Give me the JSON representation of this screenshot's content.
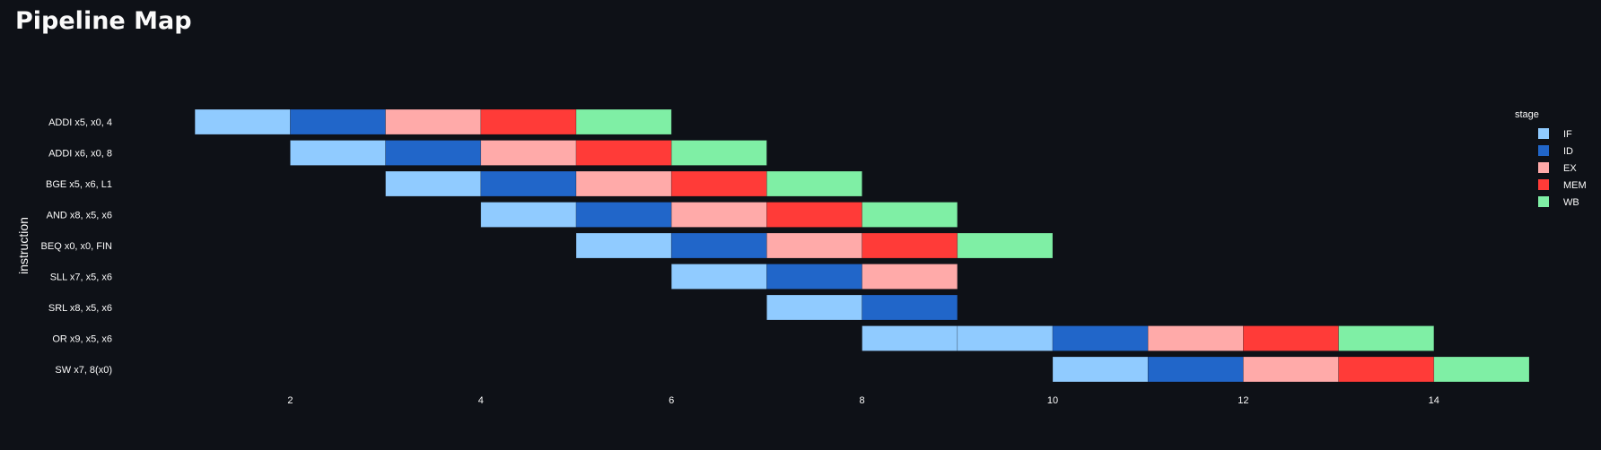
{
  "page": {
    "title": "Pipeline Map"
  },
  "chart_data": {
    "type": "bar",
    "orientation": "horizontal",
    "title": "",
    "xlabel": "",
    "ylabel": "instruction",
    "xlim": [
      0,
      15
    ],
    "xticks": [
      2,
      4,
      6,
      8,
      10,
      12,
      14
    ],
    "grid": false,
    "legend": {
      "title": "stage",
      "placement": "right"
    },
    "stages": [
      {
        "name": "IF",
        "color": "#90cbff"
      },
      {
        "name": "ID",
        "color": "#2166c9"
      },
      {
        "name": "EX",
        "color": "#ffaaa9"
      },
      {
        "name": "MEM",
        "color": "#ff3b38"
      },
      {
        "name": "WB",
        "color": "#7fefa5"
      }
    ],
    "categories": [
      "ADDI x5, x0, 4",
      "ADDI x6, x0, 8",
      "BGE x5, x6, L1",
      "AND x8, x5, x6",
      "BEQ x0, x0, FIN",
      "SLL x7, x5, x6",
      "SRL x8, x5, x6",
      "OR x9, x5, x6",
      "SW x7, 8(x0)"
    ],
    "segments": [
      {
        "instruction": "ADDI x5, x0, 4",
        "stage": "IF",
        "start": 1,
        "end": 2
      },
      {
        "instruction": "ADDI x5, x0, 4",
        "stage": "ID",
        "start": 2,
        "end": 3
      },
      {
        "instruction": "ADDI x5, x0, 4",
        "stage": "EX",
        "start": 3,
        "end": 4
      },
      {
        "instruction": "ADDI x5, x0, 4",
        "stage": "MEM",
        "start": 4,
        "end": 5
      },
      {
        "instruction": "ADDI x5, x0, 4",
        "stage": "WB",
        "start": 5,
        "end": 6
      },
      {
        "instruction": "ADDI x6, x0, 8",
        "stage": "IF",
        "start": 2,
        "end": 3
      },
      {
        "instruction": "ADDI x6, x0, 8",
        "stage": "ID",
        "start": 3,
        "end": 4
      },
      {
        "instruction": "ADDI x6, x0, 8",
        "stage": "EX",
        "start": 4,
        "end": 5
      },
      {
        "instruction": "ADDI x6, x0, 8",
        "stage": "MEM",
        "start": 5,
        "end": 6
      },
      {
        "instruction": "ADDI x6, x0, 8",
        "stage": "WB",
        "start": 6,
        "end": 7
      },
      {
        "instruction": "BGE x5, x6, L1",
        "stage": "IF",
        "start": 3,
        "end": 4
      },
      {
        "instruction": "BGE x5, x6, L1",
        "stage": "ID",
        "start": 4,
        "end": 5
      },
      {
        "instruction": "BGE x5, x6, L1",
        "stage": "EX",
        "start": 5,
        "end": 6
      },
      {
        "instruction": "BGE x5, x6, L1",
        "stage": "MEM",
        "start": 6,
        "end": 7
      },
      {
        "instruction": "BGE x5, x6, L1",
        "stage": "WB",
        "start": 7,
        "end": 8
      },
      {
        "instruction": "AND x8, x5, x6",
        "stage": "IF",
        "start": 4,
        "end": 5
      },
      {
        "instruction": "AND x8, x5, x6",
        "stage": "ID",
        "start": 5,
        "end": 6
      },
      {
        "instruction": "AND x8, x5, x6",
        "stage": "EX",
        "start": 6,
        "end": 7
      },
      {
        "instruction": "AND x8, x5, x6",
        "stage": "MEM",
        "start": 7,
        "end": 8
      },
      {
        "instruction": "AND x8, x5, x6",
        "stage": "WB",
        "start": 8,
        "end": 9
      },
      {
        "instruction": "BEQ x0, x0, FIN",
        "stage": "IF",
        "start": 5,
        "end": 6
      },
      {
        "instruction": "BEQ x0, x0, FIN",
        "stage": "ID",
        "start": 6,
        "end": 7
      },
      {
        "instruction": "BEQ x0, x0, FIN",
        "stage": "EX",
        "start": 7,
        "end": 8
      },
      {
        "instruction": "BEQ x0, x0, FIN",
        "stage": "MEM",
        "start": 8,
        "end": 9
      },
      {
        "instruction": "BEQ x0, x0, FIN",
        "stage": "WB",
        "start": 9,
        "end": 10
      },
      {
        "instruction": "SLL x7, x5, x6",
        "stage": "IF",
        "start": 6,
        "end": 7
      },
      {
        "instruction": "SLL x7, x5, x6",
        "stage": "ID",
        "start": 7,
        "end": 8
      },
      {
        "instruction": "SLL x7, x5, x6",
        "stage": "EX",
        "start": 8,
        "end": 9
      },
      {
        "instruction": "SRL x8, x5, x6",
        "stage": "IF",
        "start": 7,
        "end": 8
      },
      {
        "instruction": "SRL x8, x5, x6",
        "stage": "ID",
        "start": 8,
        "end": 9
      },
      {
        "instruction": "OR x9, x5, x6",
        "stage": "IF",
        "start": 8,
        "end": 9
      },
      {
        "instruction": "OR x9, x5, x6",
        "stage": "IF",
        "start": 9,
        "end": 10
      },
      {
        "instruction": "OR x9, x5, x6",
        "stage": "ID",
        "start": 10,
        "end": 11
      },
      {
        "instruction": "OR x9, x5, x6",
        "stage": "EX",
        "start": 11,
        "end": 12
      },
      {
        "instruction": "OR x9, x5, x6",
        "stage": "MEM",
        "start": 12,
        "end": 13
      },
      {
        "instruction": "OR x9, x5, x6",
        "stage": "WB",
        "start": 13,
        "end": 14
      },
      {
        "instruction": "SW x7, 8(x0)",
        "stage": "IF",
        "start": 10,
        "end": 11
      },
      {
        "instruction": "SW x7, 8(x0)",
        "stage": "ID",
        "start": 11,
        "end": 12
      },
      {
        "instruction": "SW x7, 8(x0)",
        "stage": "EX",
        "start": 12,
        "end": 13
      },
      {
        "instruction": "SW x7, 8(x0)",
        "stage": "MEM",
        "start": 13,
        "end": 14
      },
      {
        "instruction": "SW x7, 8(x0)",
        "stage": "WB",
        "start": 14,
        "end": 15
      }
    ]
  }
}
